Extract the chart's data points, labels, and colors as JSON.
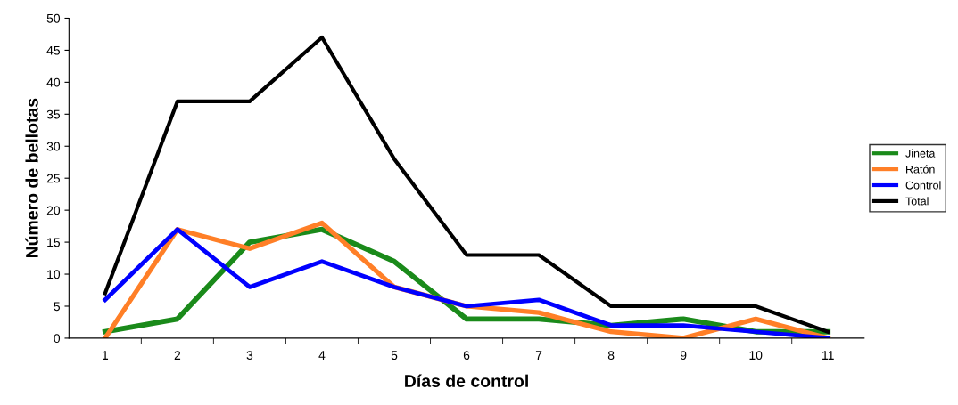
{
  "chart_data": {
    "type": "line",
    "xlabel": "Días de control",
    "ylabel": "Número de bellotas",
    "categories": [
      "1",
      "2",
      "3",
      "4",
      "5",
      "6",
      "7",
      "8",
      "9",
      "10",
      "11"
    ],
    "series": [
      {
        "name": "Jineta",
        "color": "#1a8a1a",
        "values": [
          1,
          3,
          15,
          17,
          12,
          3,
          3,
          2,
          3,
          1,
          1
        ]
      },
      {
        "name": "Ratón",
        "color": "#ff7f27",
        "values": [
          0,
          17,
          14,
          18,
          8,
          5,
          4,
          1,
          0,
          3,
          0
        ]
      },
      {
        "name": "Control",
        "color": "#0000ff",
        "values": [
          6,
          17,
          8,
          12,
          8,
          5,
          6,
          2,
          2,
          1,
          0
        ]
      },
      {
        "name": "Total",
        "color": "#000000",
        "values": [
          7,
          37,
          37,
          47,
          28,
          13,
          13,
          5,
          5,
          5,
          1
        ]
      }
    ],
    "ylim": [
      0,
      50
    ],
    "yticks": [
      0,
      5,
      10,
      15,
      20,
      25,
      30,
      35,
      40,
      45,
      50
    ],
    "grid": false,
    "legend": "right",
    "marker": "none",
    "line_style": "solid"
  }
}
